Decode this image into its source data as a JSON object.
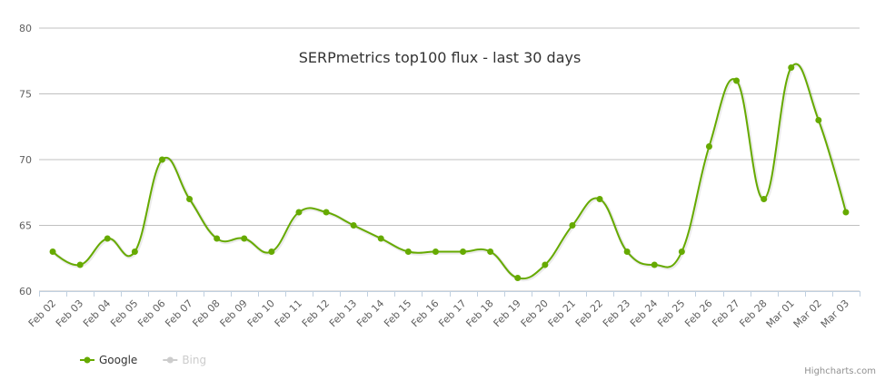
{
  "chart_data": {
    "type": "line",
    "title": "SERPmetrics top100 flux - last 30 days",
    "categories": [
      "Feb 02",
      "Feb 03",
      "Feb 04",
      "Feb 05",
      "Feb 06",
      "Feb 07",
      "Feb 08",
      "Feb 09",
      "Feb 10",
      "Feb 11",
      "Feb 12",
      "Feb 13",
      "Feb 14",
      "Feb 15",
      "Feb 16",
      "Feb 17",
      "Feb 18",
      "Feb 19",
      "Feb 20",
      "Feb 21",
      "Feb 22",
      "Feb 23",
      "Feb 24",
      "Feb 25",
      "Feb 26",
      "Feb 27",
      "Feb 28",
      "Mar 01",
      "Mar 02",
      "Mar 03"
    ],
    "series": [
      {
        "name": "Google",
        "color": "#66aa00",
        "visible": true,
        "values": [
          63,
          62,
          64,
          63,
          70,
          67,
          64,
          64,
          63,
          66,
          66,
          65,
          64,
          63,
          63,
          63,
          63,
          61,
          62,
          65,
          67,
          63,
          62,
          63,
          71,
          76,
          67,
          77,
          73,
          66
        ]
      },
      {
        "name": "Bing",
        "color": "#cccccc",
        "visible": false,
        "values": [
          null,
          null,
          null,
          null,
          null,
          null,
          null,
          null,
          null,
          null,
          null,
          null,
          null,
          null,
          null,
          null,
          null,
          null,
          null,
          null,
          null,
          null,
          null,
          null,
          null,
          null,
          null,
          null,
          null,
          null
        ]
      }
    ],
    "ylim": [
      60,
      80
    ],
    "yticks": [
      60,
      65,
      70,
      75,
      80
    ],
    "grid": true,
    "smooth": true,
    "legend": "bottom-left",
    "credits": "Highcharts.com"
  }
}
